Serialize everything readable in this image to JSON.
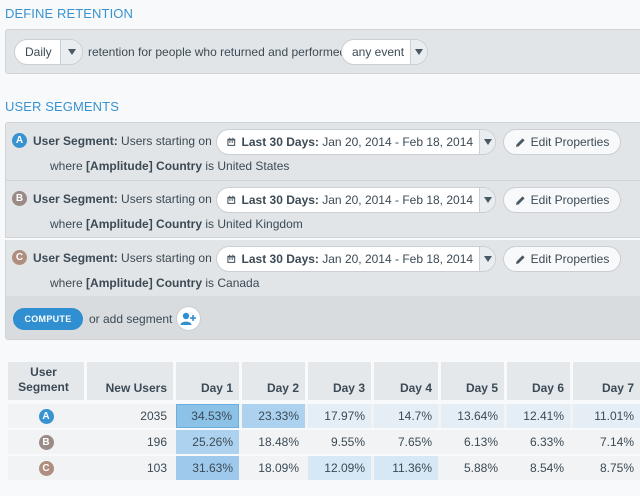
{
  "define_retention": {
    "title": "DEFINE RETENTION",
    "period_select": "Daily",
    "sentence": "retention for people who returned and performed",
    "event_select": "any event"
  },
  "user_segments": {
    "title": "USER SEGMENTS",
    "segments": [
      {
        "letter": "A",
        "color": "#3a93d1",
        "label_bold": "User Segment:",
        "label_rest": " Users starting on",
        "date_bold": "Last 30 Days:",
        "date_range": " Jan 20, 2014 - Feb 18, 2014",
        "edit_label": "Edit Properties",
        "where_pre": "where ",
        "where_prop": "[Amplitude] Country",
        "where_post": " is United States"
      },
      {
        "letter": "B",
        "color": "#9a8b86",
        "label_bold": "User Segment:",
        "label_rest": " Users starting on",
        "date_bold": "Last 30 Days:",
        "date_range": " Jan 20, 2014 - Feb 18, 2014",
        "edit_label": "Edit Properties",
        "where_pre": "where ",
        "where_prop": "[Amplitude] Country",
        "where_post": " is United Kingdom"
      },
      {
        "letter": "C",
        "color": "#b08e7f",
        "label_bold": "User Segment:",
        "label_rest": " Users starting on",
        "date_bold": "Last 30 Days:",
        "date_range": " Jan 20, 2014 - Feb 18, 2014",
        "edit_label": "Edit Properties",
        "where_pre": "where ",
        "where_prop": "[Amplitude] Country",
        "where_post": " is Canada"
      }
    ],
    "compute_label": "COMPUTE",
    "add_segment_text": "or add segment"
  },
  "table": {
    "headers": [
      "User Segment",
      "New Users",
      "Day 1",
      "Day 2",
      "Day 3",
      "Day 4",
      "Day 5",
      "Day 6",
      "Day 7"
    ],
    "rows": [
      {
        "letter": "A",
        "color": "#3a93d1",
        "new_users": "2035",
        "days": [
          "34.53%",
          "23.33%",
          "17.97%",
          "14.7%",
          "13.64%",
          "12.41%",
          "11.01%"
        ]
      },
      {
        "letter": "B",
        "color": "#9a8b86",
        "new_users": "196",
        "days": [
          "25.26%",
          "18.48%",
          "9.55%",
          "7.65%",
          "6.13%",
          "6.33%",
          "7.14%"
        ]
      },
      {
        "letter": "C",
        "color": "#b08e7f",
        "new_users": "103",
        "days": [
          "31.63%",
          "18.09%",
          "12.09%",
          "11.36%",
          "5.88%",
          "8.54%",
          "8.75%"
        ]
      }
    ]
  }
}
